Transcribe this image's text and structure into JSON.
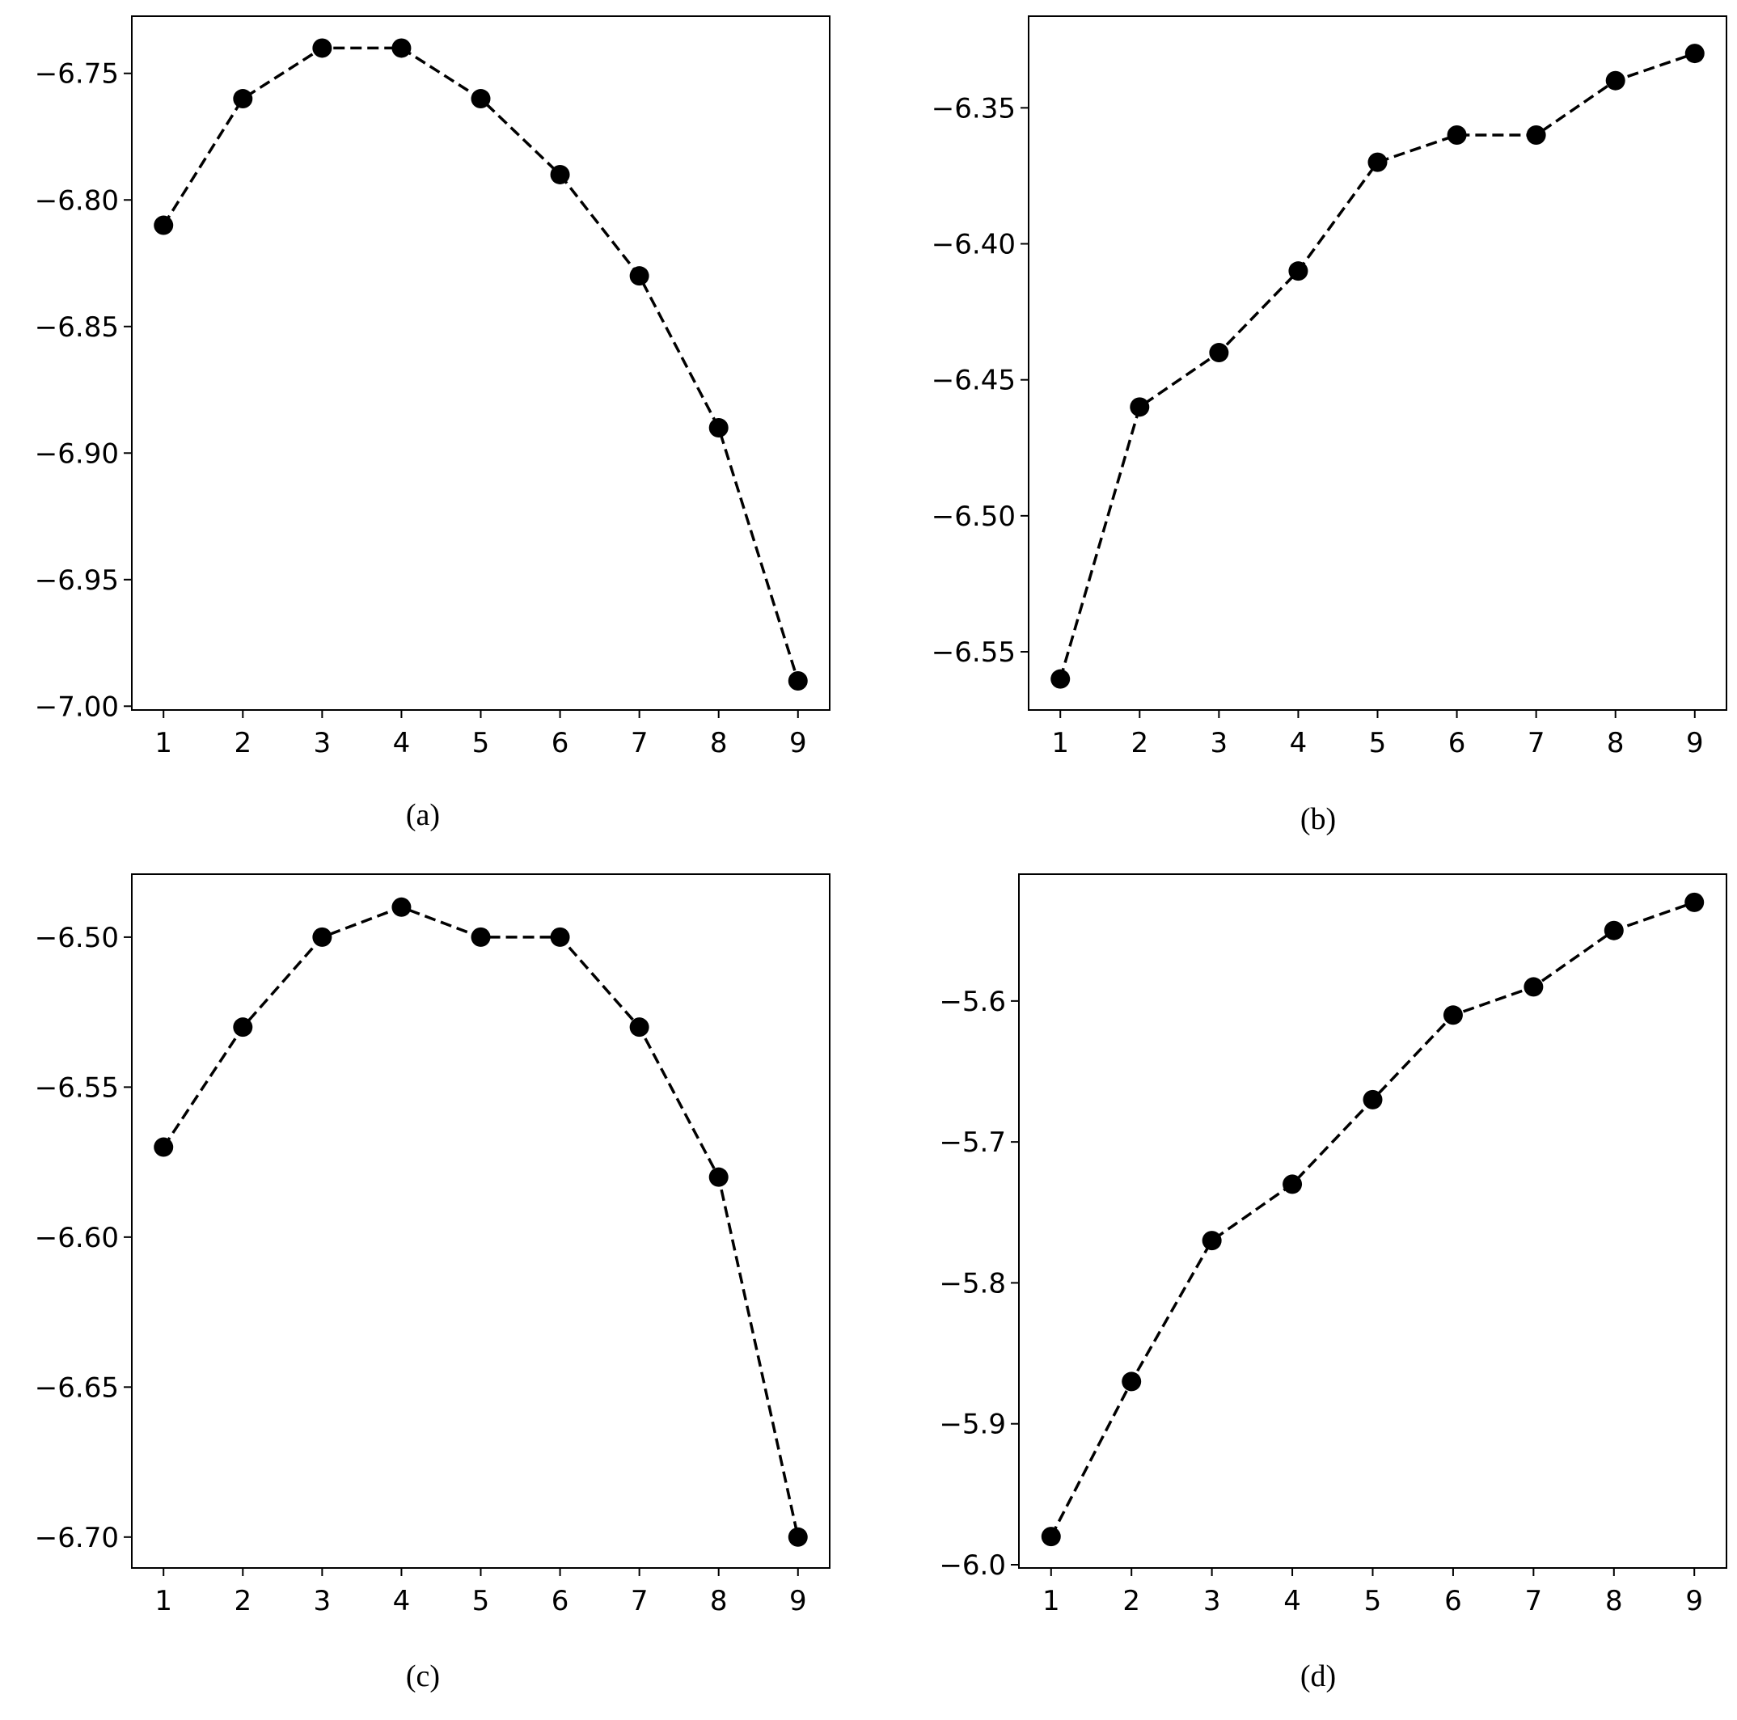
{
  "figure": {
    "colors": {
      "line": "#000000",
      "marker": "#000000",
      "frame": "#000000",
      "background": "#ffffff"
    }
  },
  "chart_data": [
    {
      "type": "line",
      "caption": "(a)",
      "x": [
        1,
        2,
        3,
        4,
        5,
        6,
        7,
        8,
        9
      ],
      "xticks": [
        "1",
        "2",
        "3",
        "4",
        "5",
        "6",
        "7",
        "8",
        "9"
      ],
      "xlim": [
        0.6,
        9.4
      ],
      "y": [
        -6.81,
        -6.76,
        -6.74,
        -6.74,
        -6.76,
        -6.79,
        -6.83,
        -6.89,
        -6.99
      ],
      "yticks": [
        -6.75,
        -6.8,
        -6.85,
        -6.9,
        -6.95,
        -7.0
      ],
      "ytick_labels": [
        "−6.75",
        "−6.80",
        "−6.85",
        "−6.90",
        "−6.95",
        "−7.00"
      ],
      "ylim": [
        -7.0015,
        -6.7274
      ],
      "line_style": "dashed",
      "marker": "circle",
      "grid": false,
      "legend": "none"
    },
    {
      "type": "line",
      "caption": "(b)",
      "x": [
        1,
        2,
        3,
        4,
        5,
        6,
        7,
        8,
        9
      ],
      "xticks": [
        "1",
        "2",
        "3",
        "4",
        "5",
        "6",
        "7",
        "8",
        "9"
      ],
      "xlim": [
        0.6,
        9.4
      ],
      "y": [
        -6.56,
        -6.46,
        -6.44,
        -6.41,
        -6.37,
        -6.36,
        -6.36,
        -6.34,
        -6.33
      ],
      "yticks": [
        -6.35,
        -6.4,
        -6.45,
        -6.5,
        -6.55
      ],
      "ytick_labels": [
        "−6.35",
        "−6.40",
        "−6.45",
        "−6.50",
        "−6.55"
      ],
      "ylim": [
        -6.5714,
        -6.3163
      ],
      "line_style": "dashed",
      "marker": "circle",
      "grid": false,
      "legend": "none"
    },
    {
      "type": "line",
      "caption": "(c)",
      "x": [
        1,
        2,
        3,
        4,
        5,
        6,
        7,
        8,
        9
      ],
      "xticks": [
        "1",
        "2",
        "3",
        "4",
        "5",
        "6",
        "7",
        "8",
        "9"
      ],
      "xlim": [
        0.6,
        9.4
      ],
      "y": [
        -6.57,
        -6.53,
        -6.5,
        -6.49,
        -6.5,
        -6.5,
        -6.53,
        -6.58,
        -6.7
      ],
      "yticks": [
        -6.5,
        -6.55,
        -6.6,
        -6.65,
        -6.7
      ],
      "ytick_labels": [
        "−6.50",
        "−6.55",
        "−6.60",
        "−6.65",
        "−6.70"
      ],
      "ylim": [
        -6.7103,
        -6.479
      ],
      "line_style": "dashed",
      "marker": "circle",
      "grid": false,
      "legend": "none"
    },
    {
      "type": "line",
      "caption": "(d)",
      "x": [
        1,
        2,
        3,
        4,
        5,
        6,
        7,
        8,
        9
      ],
      "xticks": [
        "1",
        "2",
        "3",
        "4",
        "5",
        "6",
        "7",
        "8",
        "9"
      ],
      "xlim": [
        0.6,
        9.4
      ],
      "y": [
        -5.98,
        -5.87,
        -5.77,
        -5.73,
        -5.67,
        -5.61,
        -5.59,
        -5.55,
        -5.53
      ],
      "yticks": [
        -5.6,
        -5.7,
        -5.8,
        -5.9,
        -6.0
      ],
      "ytick_labels": [
        "−5.6",
        "−5.7",
        "−5.8",
        "−5.9",
        "−6.0"
      ],
      "ylim": [
        -6.0023,
        -5.51
      ],
      "line_style": "dashed",
      "marker": "circle",
      "grid": false,
      "legend": "none"
    }
  ]
}
